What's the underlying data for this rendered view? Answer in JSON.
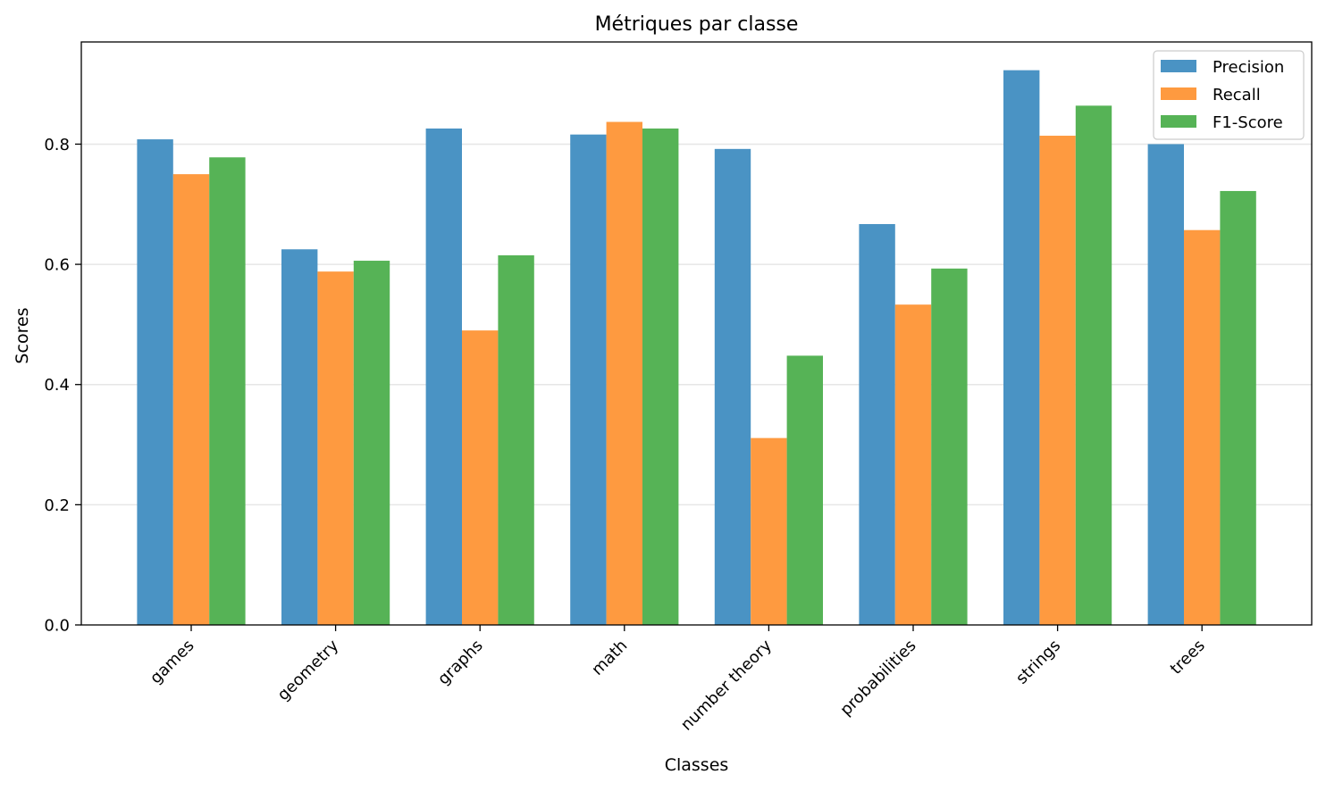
{
  "chart_data": {
    "type": "bar",
    "title": "Métriques par classe",
    "xlabel": "Classes",
    "ylabel": "Scores",
    "categories": [
      "games",
      "geometry",
      "graphs",
      "math",
      "number theory",
      "probabilities",
      "strings",
      "trees"
    ],
    "series": [
      {
        "name": "Precision",
        "color": "#4a93c4",
        "values": [
          0.808,
          0.625,
          0.826,
          0.816,
          0.792,
          0.667,
          0.923,
          0.8
        ]
      },
      {
        "name": "Recall",
        "color": "#fe9a40",
        "values": [
          0.75,
          0.588,
          0.49,
          0.837,
          0.311,
          0.533,
          0.814,
          0.657
        ]
      },
      {
        "name": "F1-Score",
        "color": "#56b356",
        "values": [
          0.778,
          0.606,
          0.615,
          0.826,
          0.448,
          0.593,
          0.864,
          0.722
        ]
      }
    ],
    "yticks": [
      "0.0",
      "0.2",
      "0.4",
      "0.6",
      "0.8"
    ],
    "ylim": [
      0,
      0.97
    ],
    "grid": "y",
    "legend_position": "top-right"
  }
}
